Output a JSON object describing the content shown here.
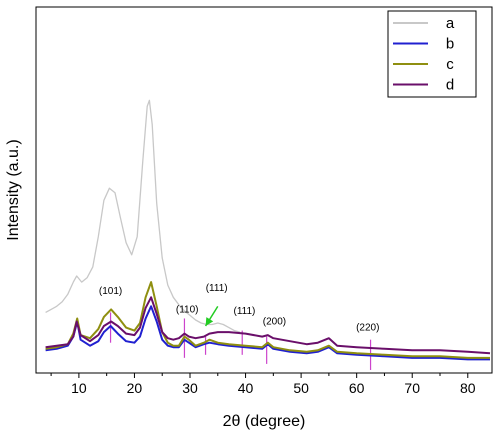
{
  "chart_data": {
    "type": "line",
    "xlabel": "2θ (degree)",
    "ylabel": "Intensity (a.u.)",
    "xlim": [
      3,
      84
    ],
    "ylim": [
      0,
      100
    ],
    "xticks": [
      0,
      10,
      20,
      30,
      40,
      50,
      60,
      70,
      80
    ],
    "yticks_labeled": false,
    "grid": false,
    "legend_position": "top-right",
    "series": [
      {
        "name": "a",
        "color": "#c8c8c8",
        "points": [
          [
            4,
            20
          ],
          [
            5,
            21
          ],
          [
            6,
            22
          ],
          [
            7,
            23.5
          ],
          [
            8,
            26
          ],
          [
            9,
            30
          ],
          [
            9.6,
            32
          ],
          [
            10.5,
            30
          ],
          [
            11.5,
            31.5
          ],
          [
            12.5,
            35
          ],
          [
            13.5,
            45
          ],
          [
            14.5,
            57
          ],
          [
            15.5,
            61
          ],
          [
            16.5,
            59.5
          ],
          [
            17.5,
            51
          ],
          [
            18.5,
            43
          ],
          [
            19.5,
            39
          ],
          [
            20.5,
            45
          ],
          [
            21.5,
            70
          ],
          [
            22.3,
            88
          ],
          [
            22.7,
            90
          ],
          [
            23.2,
            82
          ],
          [
            24,
            56
          ],
          [
            25,
            38
          ],
          [
            26,
            29
          ],
          [
            27,
            25
          ],
          [
            28,
            22.5
          ],
          [
            29,
            20.5
          ],
          [
            30,
            19
          ],
          [
            31,
            17.5
          ],
          [
            32,
            16.5
          ],
          [
            33,
            16
          ],
          [
            34,
            16
          ],
          [
            35,
            16.5
          ],
          [
            36,
            16
          ],
          [
            37,
            15
          ],
          [
            38,
            14
          ],
          [
            39,
            13.5
          ]
        ]
      },
      {
        "name": "b",
        "color": "#2020d0",
        "points": [
          [
            4,
            7.5
          ],
          [
            6,
            8
          ],
          [
            8,
            9
          ],
          [
            9,
            12
          ],
          [
            9.7,
            17
          ],
          [
            10.3,
            11
          ],
          [
            12,
            9
          ],
          [
            13.5,
            10.5
          ],
          [
            14.5,
            13.5
          ],
          [
            15.7,
            15.5
          ],
          [
            17,
            13
          ],
          [
            18.5,
            10.5
          ],
          [
            20,
            10
          ],
          [
            21,
            12
          ],
          [
            22,
            18
          ],
          [
            23,
            22
          ],
          [
            24,
            17
          ],
          [
            25,
            11
          ],
          [
            26,
            9
          ],
          [
            27,
            8.5
          ],
          [
            28,
            8.5
          ],
          [
            29,
            11
          ],
          [
            29.8,
            10
          ],
          [
            31,
            8.5
          ],
          [
            32.5,
            9.5
          ],
          [
            33.5,
            10
          ],
          [
            35,
            9.5
          ],
          [
            37,
            9
          ],
          [
            40,
            8.5
          ],
          [
            43,
            8
          ],
          [
            44,
            9.5
          ],
          [
            45,
            8
          ],
          [
            48,
            7
          ],
          [
            51,
            6.5
          ],
          [
            53,
            7
          ],
          [
            55,
            8.5
          ],
          [
            56.5,
            6.5
          ],
          [
            60,
            6
          ],
          [
            65,
            5.5
          ],
          [
            70,
            5
          ],
          [
            75,
            5
          ],
          [
            80,
            4.5
          ],
          [
            84,
            4.5
          ]
        ]
      },
      {
        "name": "c",
        "color": "#8f8f10",
        "points": [
          [
            4,
            8
          ],
          [
            6,
            8.5
          ],
          [
            8,
            9.5
          ],
          [
            9,
            13
          ],
          [
            9.7,
            18
          ],
          [
            10.3,
            12.5
          ],
          [
            12,
            11.5
          ],
          [
            13.5,
            14.5
          ],
          [
            14.5,
            18.5
          ],
          [
            15.8,
            21
          ],
          [
            17,
            18.5
          ],
          [
            18.5,
            15
          ],
          [
            20,
            14
          ],
          [
            21,
            16.5
          ],
          [
            22,
            25
          ],
          [
            23,
            30
          ],
          [
            24,
            22
          ],
          [
            25,
            13.5
          ],
          [
            26,
            10
          ],
          [
            27,
            9
          ],
          [
            28,
            9
          ],
          [
            29,
            12
          ],
          [
            29.8,
            11
          ],
          [
            31,
            9
          ],
          [
            32.5,
            10
          ],
          [
            33.5,
            11
          ],
          [
            35,
            10
          ],
          [
            37,
            9.5
          ],
          [
            40,
            9
          ],
          [
            43,
            8.5
          ],
          [
            44,
            10
          ],
          [
            45,
            8.5
          ],
          [
            48,
            7.5
          ],
          [
            51,
            7
          ],
          [
            53,
            7.5
          ],
          [
            55,
            9
          ],
          [
            56.5,
            7
          ],
          [
            60,
            6.5
          ],
          [
            65,
            6
          ],
          [
            70,
            5.5
          ],
          [
            75,
            5.5
          ],
          [
            80,
            5
          ],
          [
            84,
            5
          ]
        ]
      },
      {
        "name": "d",
        "color": "#6a0f6a",
        "points": [
          [
            4,
            8.5
          ],
          [
            6,
            9
          ],
          [
            8,
            9.5
          ],
          [
            9,
            12
          ],
          [
            9.6,
            17
          ],
          [
            10.3,
            12.5
          ],
          [
            12,
            10.5
          ],
          [
            13.5,
            12.5
          ],
          [
            14.5,
            15.5
          ],
          [
            15.8,
            17
          ],
          [
            17,
            15.5
          ],
          [
            18.5,
            13
          ],
          [
            20,
            12.5
          ],
          [
            21,
            15
          ],
          [
            22,
            21.5
          ],
          [
            23,
            25
          ],
          [
            24,
            19.5
          ],
          [
            25,
            13.5
          ],
          [
            26,
            11.5
          ],
          [
            27,
            11
          ],
          [
            28,
            11.5
          ],
          [
            29,
            13
          ],
          [
            29.8,
            12
          ],
          [
            31,
            11.5
          ],
          [
            32.5,
            12
          ],
          [
            33.5,
            13
          ],
          [
            35,
            13.5
          ],
          [
            37,
            13.5
          ],
          [
            40,
            13
          ],
          [
            43,
            12
          ],
          [
            44,
            12.5
          ],
          [
            45,
            11.5
          ],
          [
            48,
            10.5
          ],
          [
            51,
            9.5
          ],
          [
            53,
            10
          ],
          [
            55,
            11.5
          ],
          [
            56.5,
            9
          ],
          [
            60,
            8.5
          ],
          [
            65,
            8
          ],
          [
            70,
            7.5
          ],
          [
            75,
            7.5
          ],
          [
            80,
            7
          ],
          [
            84,
            6.5
          ]
        ]
      }
    ],
    "reference_lines": [
      {
        "x": 15.7,
        "ymin": 10,
        "ymax": 20
      },
      {
        "x": 29.0,
        "ymin": 5,
        "ymax": 18
      },
      {
        "x": 32.8,
        "ymin": 6,
        "ymax": 12
      },
      {
        "x": 39.4,
        "ymin": 6,
        "ymax": 14
      },
      {
        "x": 43.8,
        "ymin": 3,
        "ymax": 12
      },
      {
        "x": 62.5,
        "ymin": 1,
        "ymax": 11
      }
    ],
    "annotations": [
      {
        "label": "(101)",
        "x": 15.7,
        "y": 26
      },
      {
        "label": "(110)",
        "x": 29.5,
        "y": 20
      },
      {
        "label": "(111)",
        "x": 34.8,
        "y": 27
      },
      {
        "label": "(111)",
        "x": 39.8,
        "y": 19.5
      },
      {
        "label": "(200)",
        "x": 45.2,
        "y": 16
      },
      {
        "label": "(220)",
        "x": 62.0,
        "y": 14
      }
    ],
    "arrow": {
      "color": "#22cc22",
      "from": [
        35.0,
        22.0
      ],
      "to": [
        32.8,
        15.5
      ]
    },
    "reference_line_color": "#cc44cc"
  }
}
